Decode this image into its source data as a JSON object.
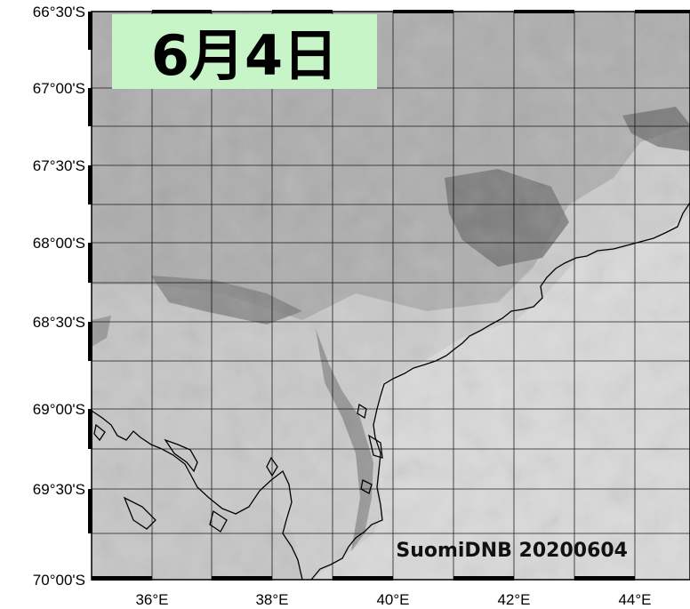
{
  "title": "6月4日",
  "title_bg_color": "#c8f5c8",
  "credit": "SuomiDNB 20200604",
  "latitude_labels": [
    "66°30'S",
    "67°00'S",
    "67°30'S",
    "68°00'S",
    "68°30'S",
    "69°00'S",
    "69°30'S",
    "70°00'S"
  ],
  "longitude_labels": [
    "36°E",
    "38°E",
    "40°E",
    "42°E",
    "44°E"
  ],
  "colors": {
    "ice_light": "#d2d2d2",
    "ice_mid": "#b9b9b9",
    "ice_dark": "#6e6e6e",
    "coastline": "#000000",
    "grid": "#000000"
  }
}
